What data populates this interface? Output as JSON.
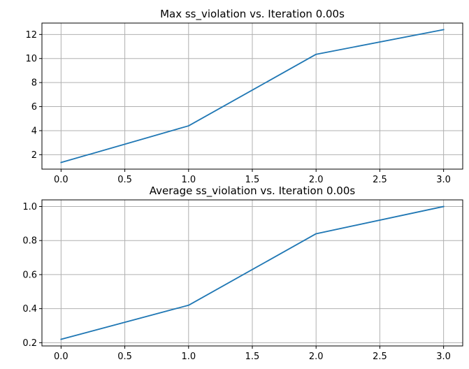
{
  "chart_data": [
    {
      "type": "line",
      "title": "Max ss_violation vs. Iteration 0.00s",
      "xlabel": "",
      "ylabel": "",
      "x": [
        0,
        1,
        2,
        3
      ],
      "series": [
        {
          "values": [
            1.35,
            4.4,
            10.35,
            12.4
          ],
          "color": "#1f77b4"
        }
      ],
      "xlim": [
        -0.15,
        3.15
      ],
      "ylim": [
        0.8,
        12.95
      ],
      "xticks": [
        0.0,
        0.5,
        1.0,
        1.5,
        2.0,
        2.5,
        3.0
      ],
      "xtick_labels": [
        "0.0",
        "0.5",
        "1.0",
        "1.5",
        "2.0",
        "2.5",
        "3.0"
      ],
      "yticks": [
        2,
        4,
        6,
        8,
        10,
        12
      ],
      "ytick_labels": [
        "2",
        "4",
        "6",
        "8",
        "10",
        "12"
      ],
      "grid": true,
      "legend": "none"
    },
    {
      "type": "line",
      "title": "Average ss_violation vs. Iteration 0.00s",
      "xlabel": "",
      "ylabel": "",
      "x": [
        0,
        1,
        2,
        3
      ],
      "series": [
        {
          "values": [
            0.22,
            0.42,
            0.84,
            1.0
          ],
          "color": "#1f77b4"
        }
      ],
      "xlim": [
        -0.15,
        3.15
      ],
      "ylim": [
        0.181,
        1.039
      ],
      "xticks": [
        0.0,
        0.5,
        1.0,
        1.5,
        2.0,
        2.5,
        3.0
      ],
      "xtick_labels": [
        "0.0",
        "0.5",
        "1.0",
        "1.5",
        "2.0",
        "2.5",
        "3.0"
      ],
      "yticks": [
        0.2,
        0.4,
        0.6,
        0.8,
        1.0
      ],
      "ytick_labels": [
        "0.2",
        "0.4",
        "0.6",
        "0.8",
        "1.0"
      ],
      "grid": true,
      "legend": "none"
    }
  ]
}
